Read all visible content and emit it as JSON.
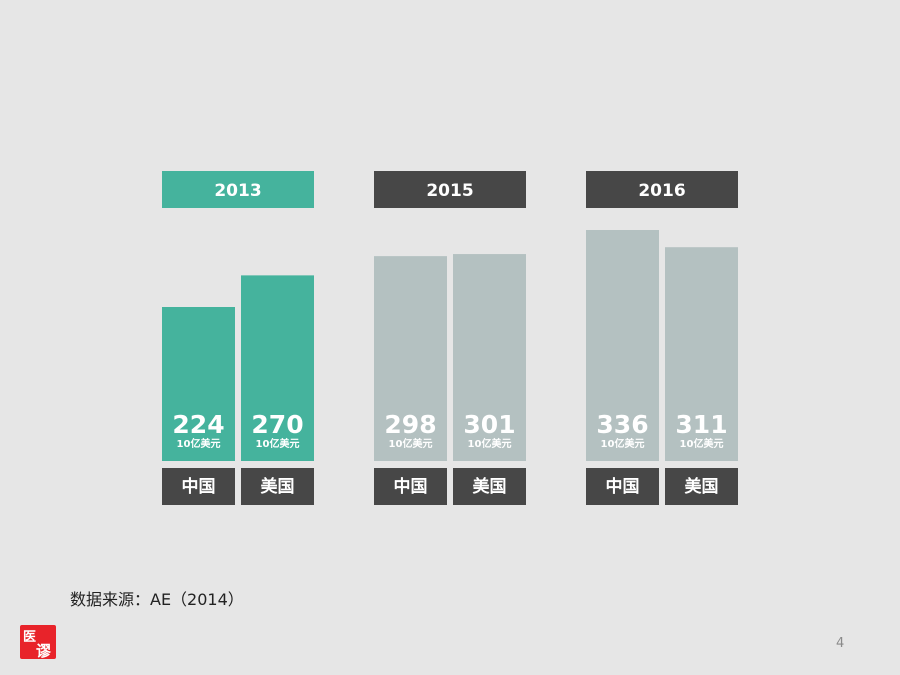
{
  "chart_data": {
    "type": "bar",
    "unit": "10亿美元",
    "categories": [
      "中国",
      "美国"
    ],
    "ylim": [
      0,
      400
    ],
    "groups": [
      {
        "year": "2013",
        "values": [
          224,
          270
        ],
        "highlight": true
      },
      {
        "year": "2015",
        "values": [
          298,
          301
        ],
        "highlight": false
      },
      {
        "year": "2016",
        "values": [
          336,
          311
        ],
        "highlight": false
      }
    ]
  },
  "colors": {
    "highlight": "#45b39d",
    "muted": "#b4c1c1",
    "dark": "#474747"
  },
  "source_text": "数据来源：AE（2014）",
  "page_number": "4",
  "logo": {
    "icon": "seal-logo-icon",
    "text": "医谬"
  }
}
